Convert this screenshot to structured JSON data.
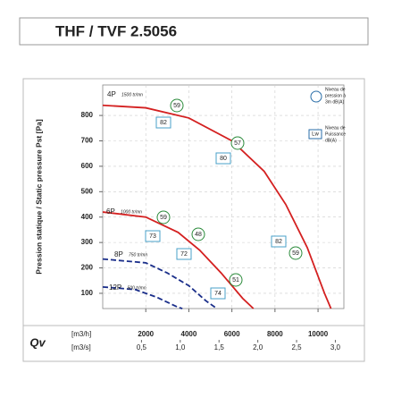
{
  "chart_data": {
    "type": "line",
    "title": "THF / TVF 2.5056",
    "y_label": "Pression statique / Static pressure Pst [Pa]",
    "x_label": "Qv",
    "x_unit": "[m3/h]",
    "x2_unit": "[m3/s]",
    "xlim": [
      0,
      11200
    ],
    "xticks": [
      2000,
      4000,
      6000,
      8000,
      10000
    ],
    "x2lim": [
      0,
      3.11
    ],
    "x2ticks": [
      {
        "value": 0.5,
        "label": "0,5"
      },
      {
        "value": 1.0,
        "label": "1,0"
      },
      {
        "value": 1.5,
        "label": "1,5"
      },
      {
        "value": 2.0,
        "label": "2,0"
      },
      {
        "value": 2.5,
        "label": "2,5"
      },
      {
        "value": 3.0,
        "label": "3,0"
      }
    ],
    "ylim": [
      40,
      920
    ],
    "yticks": [
      100,
      200,
      300,
      400,
      500,
      600,
      700,
      800
    ],
    "grid": true,
    "legend": {
      "sound_pressure": [
        "Niveau de",
        "pression à",
        "3m dB(A)"
      ],
      "sound_power_symbol": "Lw",
      "sound_power": [
        "Niveau de",
        "Puissance",
        "dB(A)"
      ]
    },
    "series": [
      {
        "name": "4P",
        "speed": "1500 tr/mn",
        "color": "#d42020",
        "dashed": false,
        "x": [
          0,
          2000,
          4000,
          6000,
          7500,
          8500,
          9500,
          10300,
          10600
        ],
        "values": [
          840,
          830,
          790,
          700,
          580,
          450,
          280,
          100,
          40
        ],
        "sound_pressure": [
          59,
          57,
          59
        ],
        "sound_power": [
          82,
          80,
          82
        ]
      },
      {
        "name": "6P",
        "speed": "1000 tr/mn",
        "color": "#d42020",
        "dashed": false,
        "x": [
          0,
          2000,
          3500,
          4500,
          5500,
          6500,
          7000
        ],
        "values": [
          420,
          400,
          340,
          270,
          180,
          80,
          40
        ],
        "sound_pressure": [
          59,
          48
        ],
        "sound_power": [
          73,
          72
        ]
      },
      {
        "name": "8P",
        "speed": "750 tr/mn",
        "color": "#1a2e8a",
        "dashed": true,
        "x": [
          0,
          2000,
          3000,
          4000,
          4800,
          5300
        ],
        "values": [
          235,
          220,
          180,
          130,
          70,
          40
        ],
        "sound_pressure": [
          51
        ],
        "sound_power": [
          74
        ]
      },
      {
        "name": "12P",
        "speed": "500 tr/mn",
        "color": "#1a2e8a",
        "dashed": true,
        "x": [
          0,
          1500,
          2500,
          3500,
          3700
        ],
        "values": [
          125,
          115,
          85,
          45,
          40
        ]
      }
    ]
  }
}
